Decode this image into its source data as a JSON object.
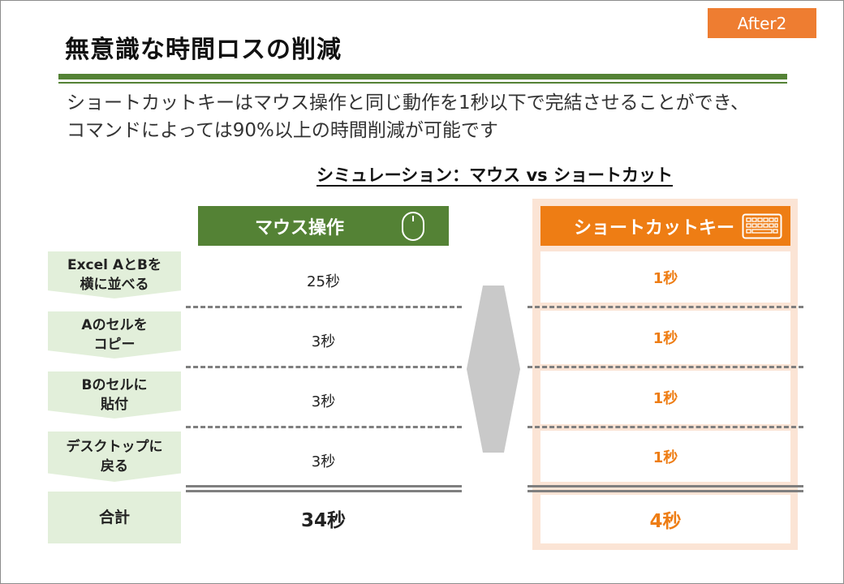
{
  "badge": "After2",
  "title": "無意識な時間ロスの削減",
  "description": [
    "ショートカットキーはマウス操作と同じ動作を1秒以下で完結させることができ、",
    "コマンドによっては90%以上の時間削減が可能です"
  ],
  "subtitle": "シミュレーション：マウス vs ショートカット",
  "columns": {
    "mouse": {
      "label": "マウス操作",
      "icon": "mouse-icon",
      "color": "#548235"
    },
    "shortcut": {
      "label": "ショートカットキー",
      "icon": "keyboard-icon",
      "color": "#ee7d14"
    }
  },
  "rows": [
    {
      "step": [
        "Excel AとBを",
        "横に並べる"
      ],
      "mouse": "25秒",
      "shortcut": "1秒"
    },
    {
      "step": [
        "Aのセルを",
        "コピー"
      ],
      "mouse": "3秒",
      "shortcut": "1秒"
    },
    {
      "step": [
        "Bのセルに",
        "貼付"
      ],
      "mouse": "3秒",
      "shortcut": "1秒"
    },
    {
      "step": [
        "デスクトップに",
        "戻る"
      ],
      "mouse": "3秒",
      "shortcut": "1秒"
    }
  ],
  "total": {
    "label": "合計",
    "mouse": "34秒",
    "shortcut": "4秒"
  }
}
